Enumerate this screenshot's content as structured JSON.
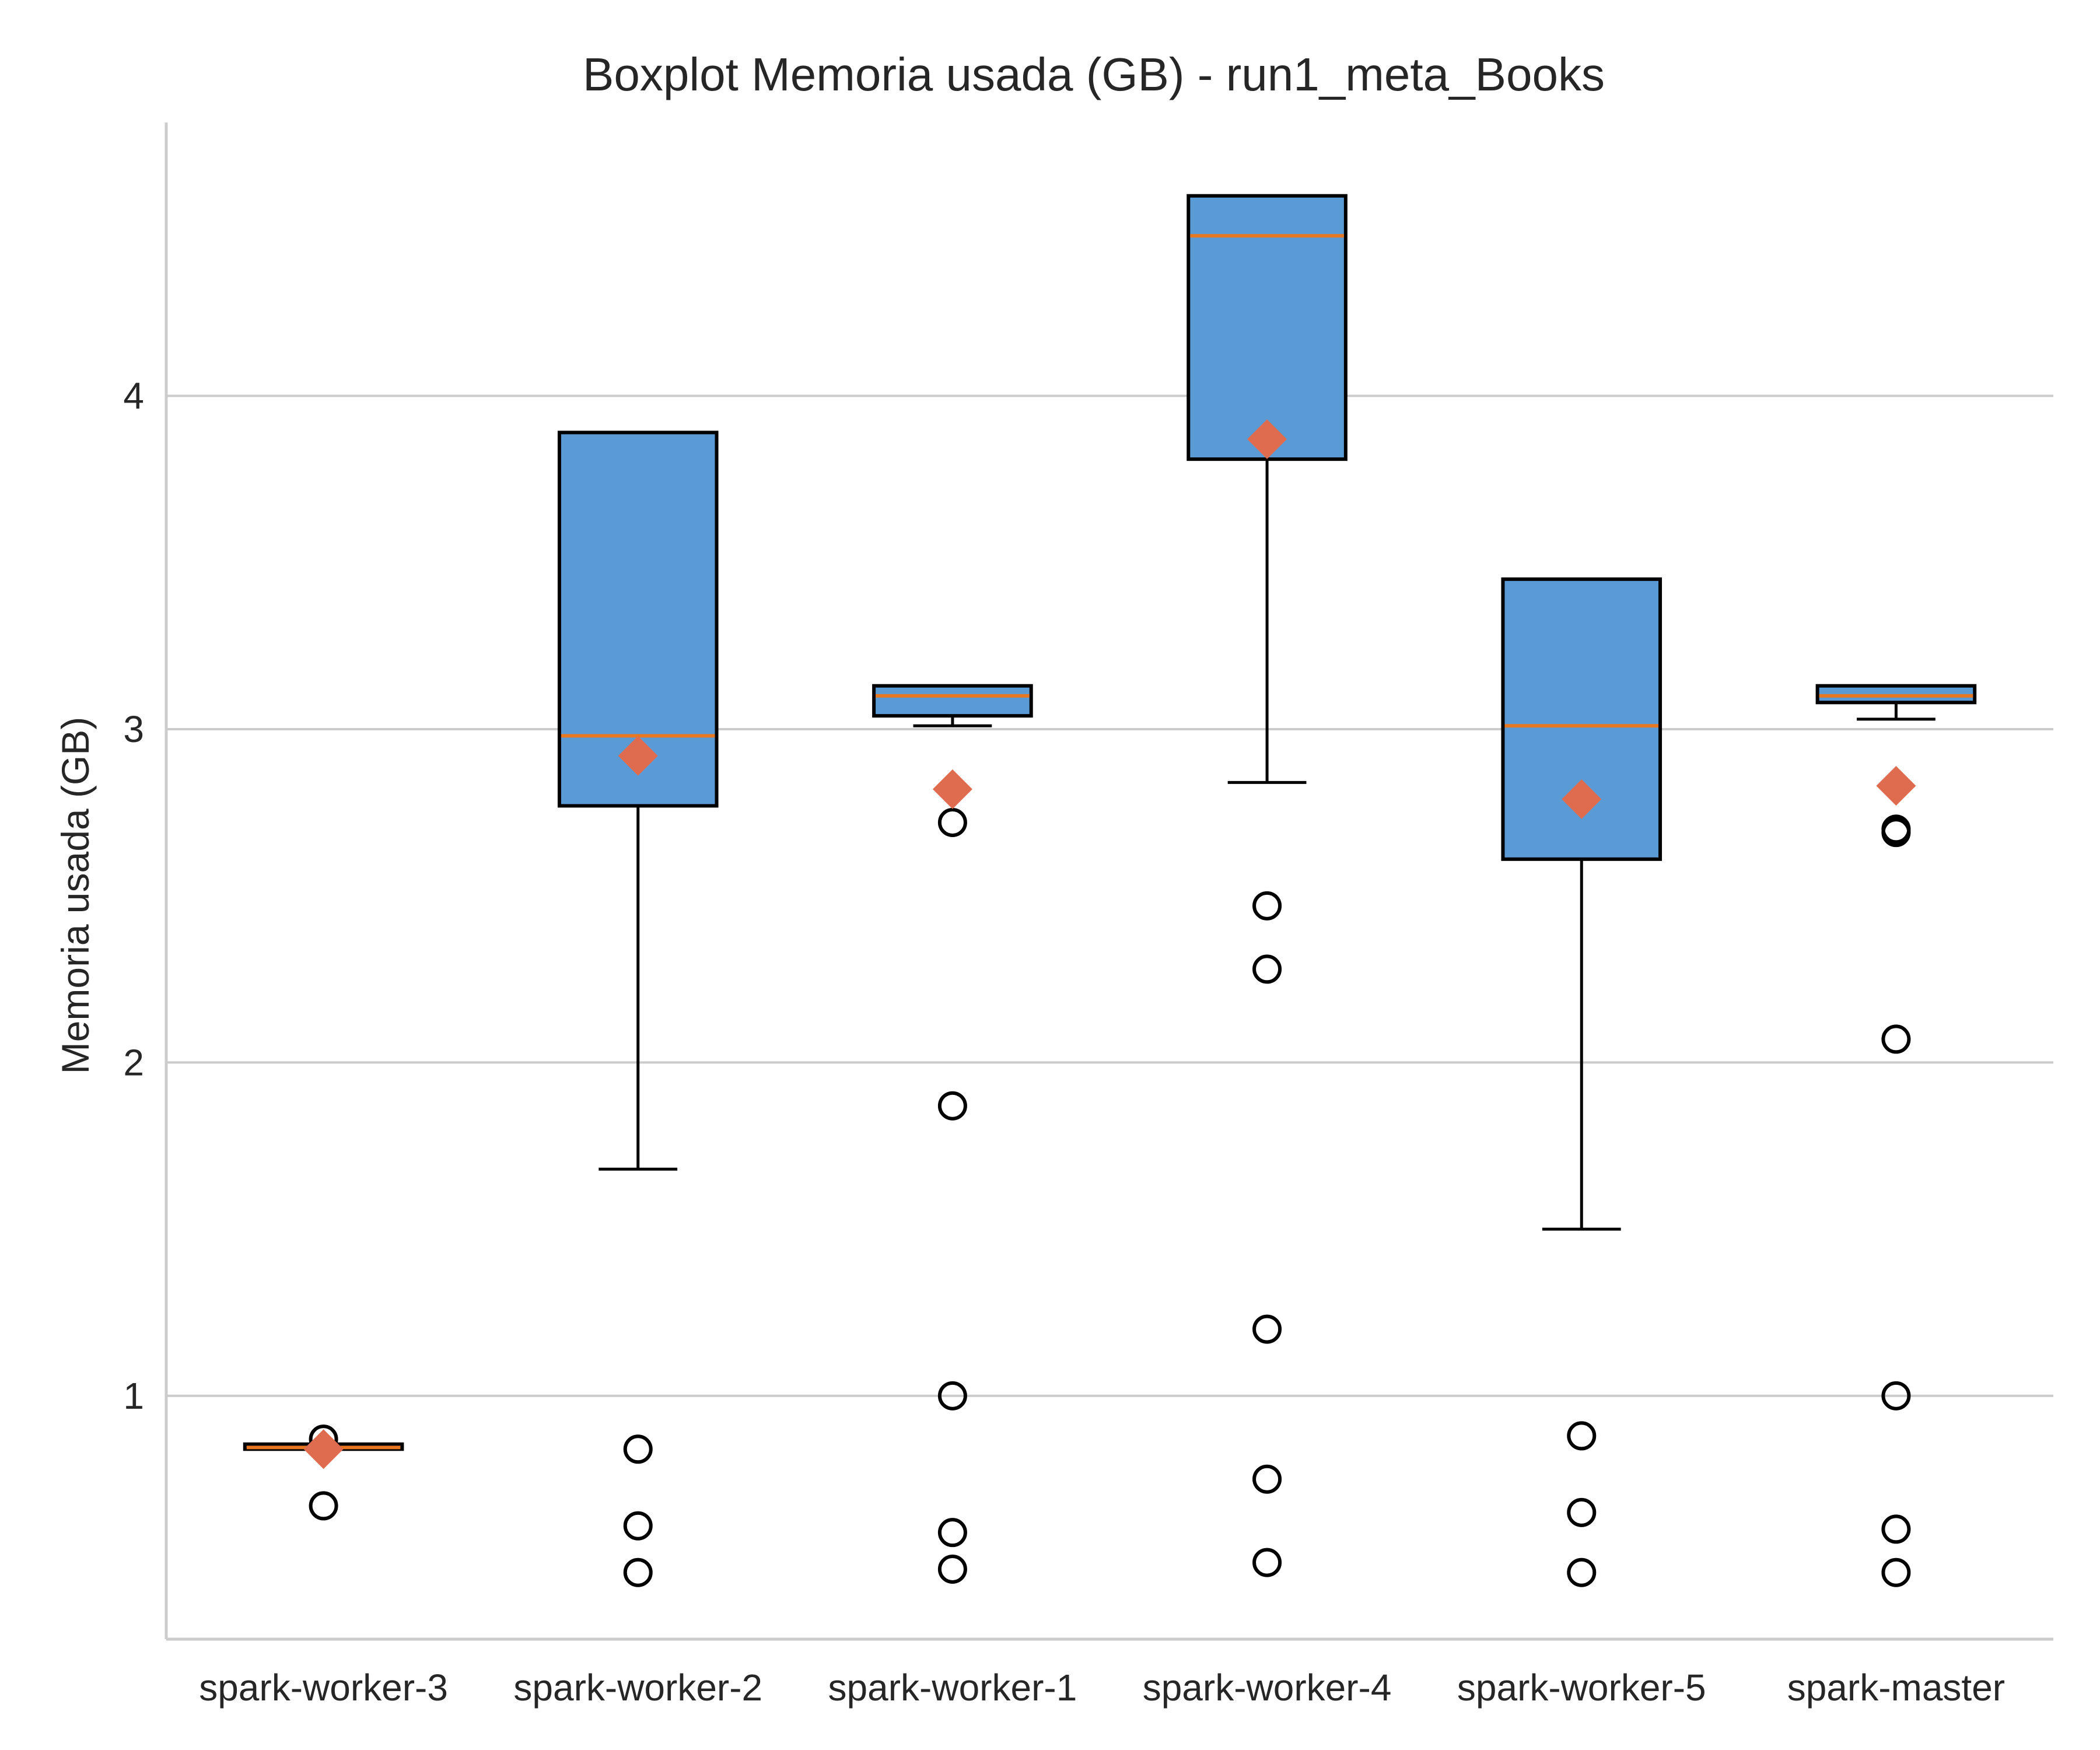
{
  "chart_data": {
    "type": "boxplot",
    "title": "Boxplot Memoria usada (GB) - run1_meta_Books",
    "xlabel": "",
    "ylabel": "Memoria usada (GB)",
    "ylim": [
      0.27,
      4.82
    ],
    "yticks": [
      1,
      2,
      3,
      4
    ],
    "grid": "horizontal",
    "colors": {
      "box_fill": "#5B9BD5",
      "box_edge": "#000000",
      "median": "#E87722",
      "mean_marker": "#E06C4F",
      "grid": "#cccccc",
      "axis": "#cccccc",
      "text": "#262626"
    },
    "categories": [
      "spark-worker-3",
      "spark-worker-2",
      "spark-worker-1",
      "spark-worker-4",
      "spark-worker-5",
      "spark-master"
    ],
    "boxes": [
      {
        "whisker_low": 0.84,
        "q1": 0.84,
        "median": 0.845,
        "q3": 0.855,
        "whisker_high": 0.855,
        "mean": 0.84,
        "fliers": [
          0.87,
          0.67
        ]
      },
      {
        "whisker_low": 1.68,
        "q1": 2.77,
        "median": 2.98,
        "q3": 3.89,
        "whisker_high": 3.89,
        "mean": 2.92,
        "fliers": [
          0.84,
          0.61,
          0.47
        ]
      },
      {
        "whisker_low": 3.01,
        "q1": 3.04,
        "median": 3.1,
        "q3": 3.13,
        "whisker_high": 3.13,
        "mean": 2.82,
        "fliers": [
          2.72,
          1.87,
          1.0,
          0.59,
          0.48
        ]
      },
      {
        "whisker_low": 2.84,
        "q1": 3.81,
        "median": 4.48,
        "q3": 4.6,
        "whisker_high": 4.6,
        "mean": 3.87,
        "fliers": [
          2.47,
          2.28,
          1.2,
          0.75,
          0.5
        ]
      },
      {
        "whisker_low": 1.5,
        "q1": 2.61,
        "median": 3.01,
        "q3": 3.45,
        "whisker_high": 3.45,
        "mean": 2.79,
        "fliers": [
          0.88,
          0.65,
          0.47
        ]
      },
      {
        "whisker_low": 3.03,
        "q1": 3.08,
        "median": 3.1,
        "q3": 3.13,
        "whisker_high": 3.13,
        "mean": 2.83,
        "fliers": [
          2.7,
          2.69,
          2.07,
          1.0,
          0.6,
          0.47
        ]
      }
    ]
  }
}
